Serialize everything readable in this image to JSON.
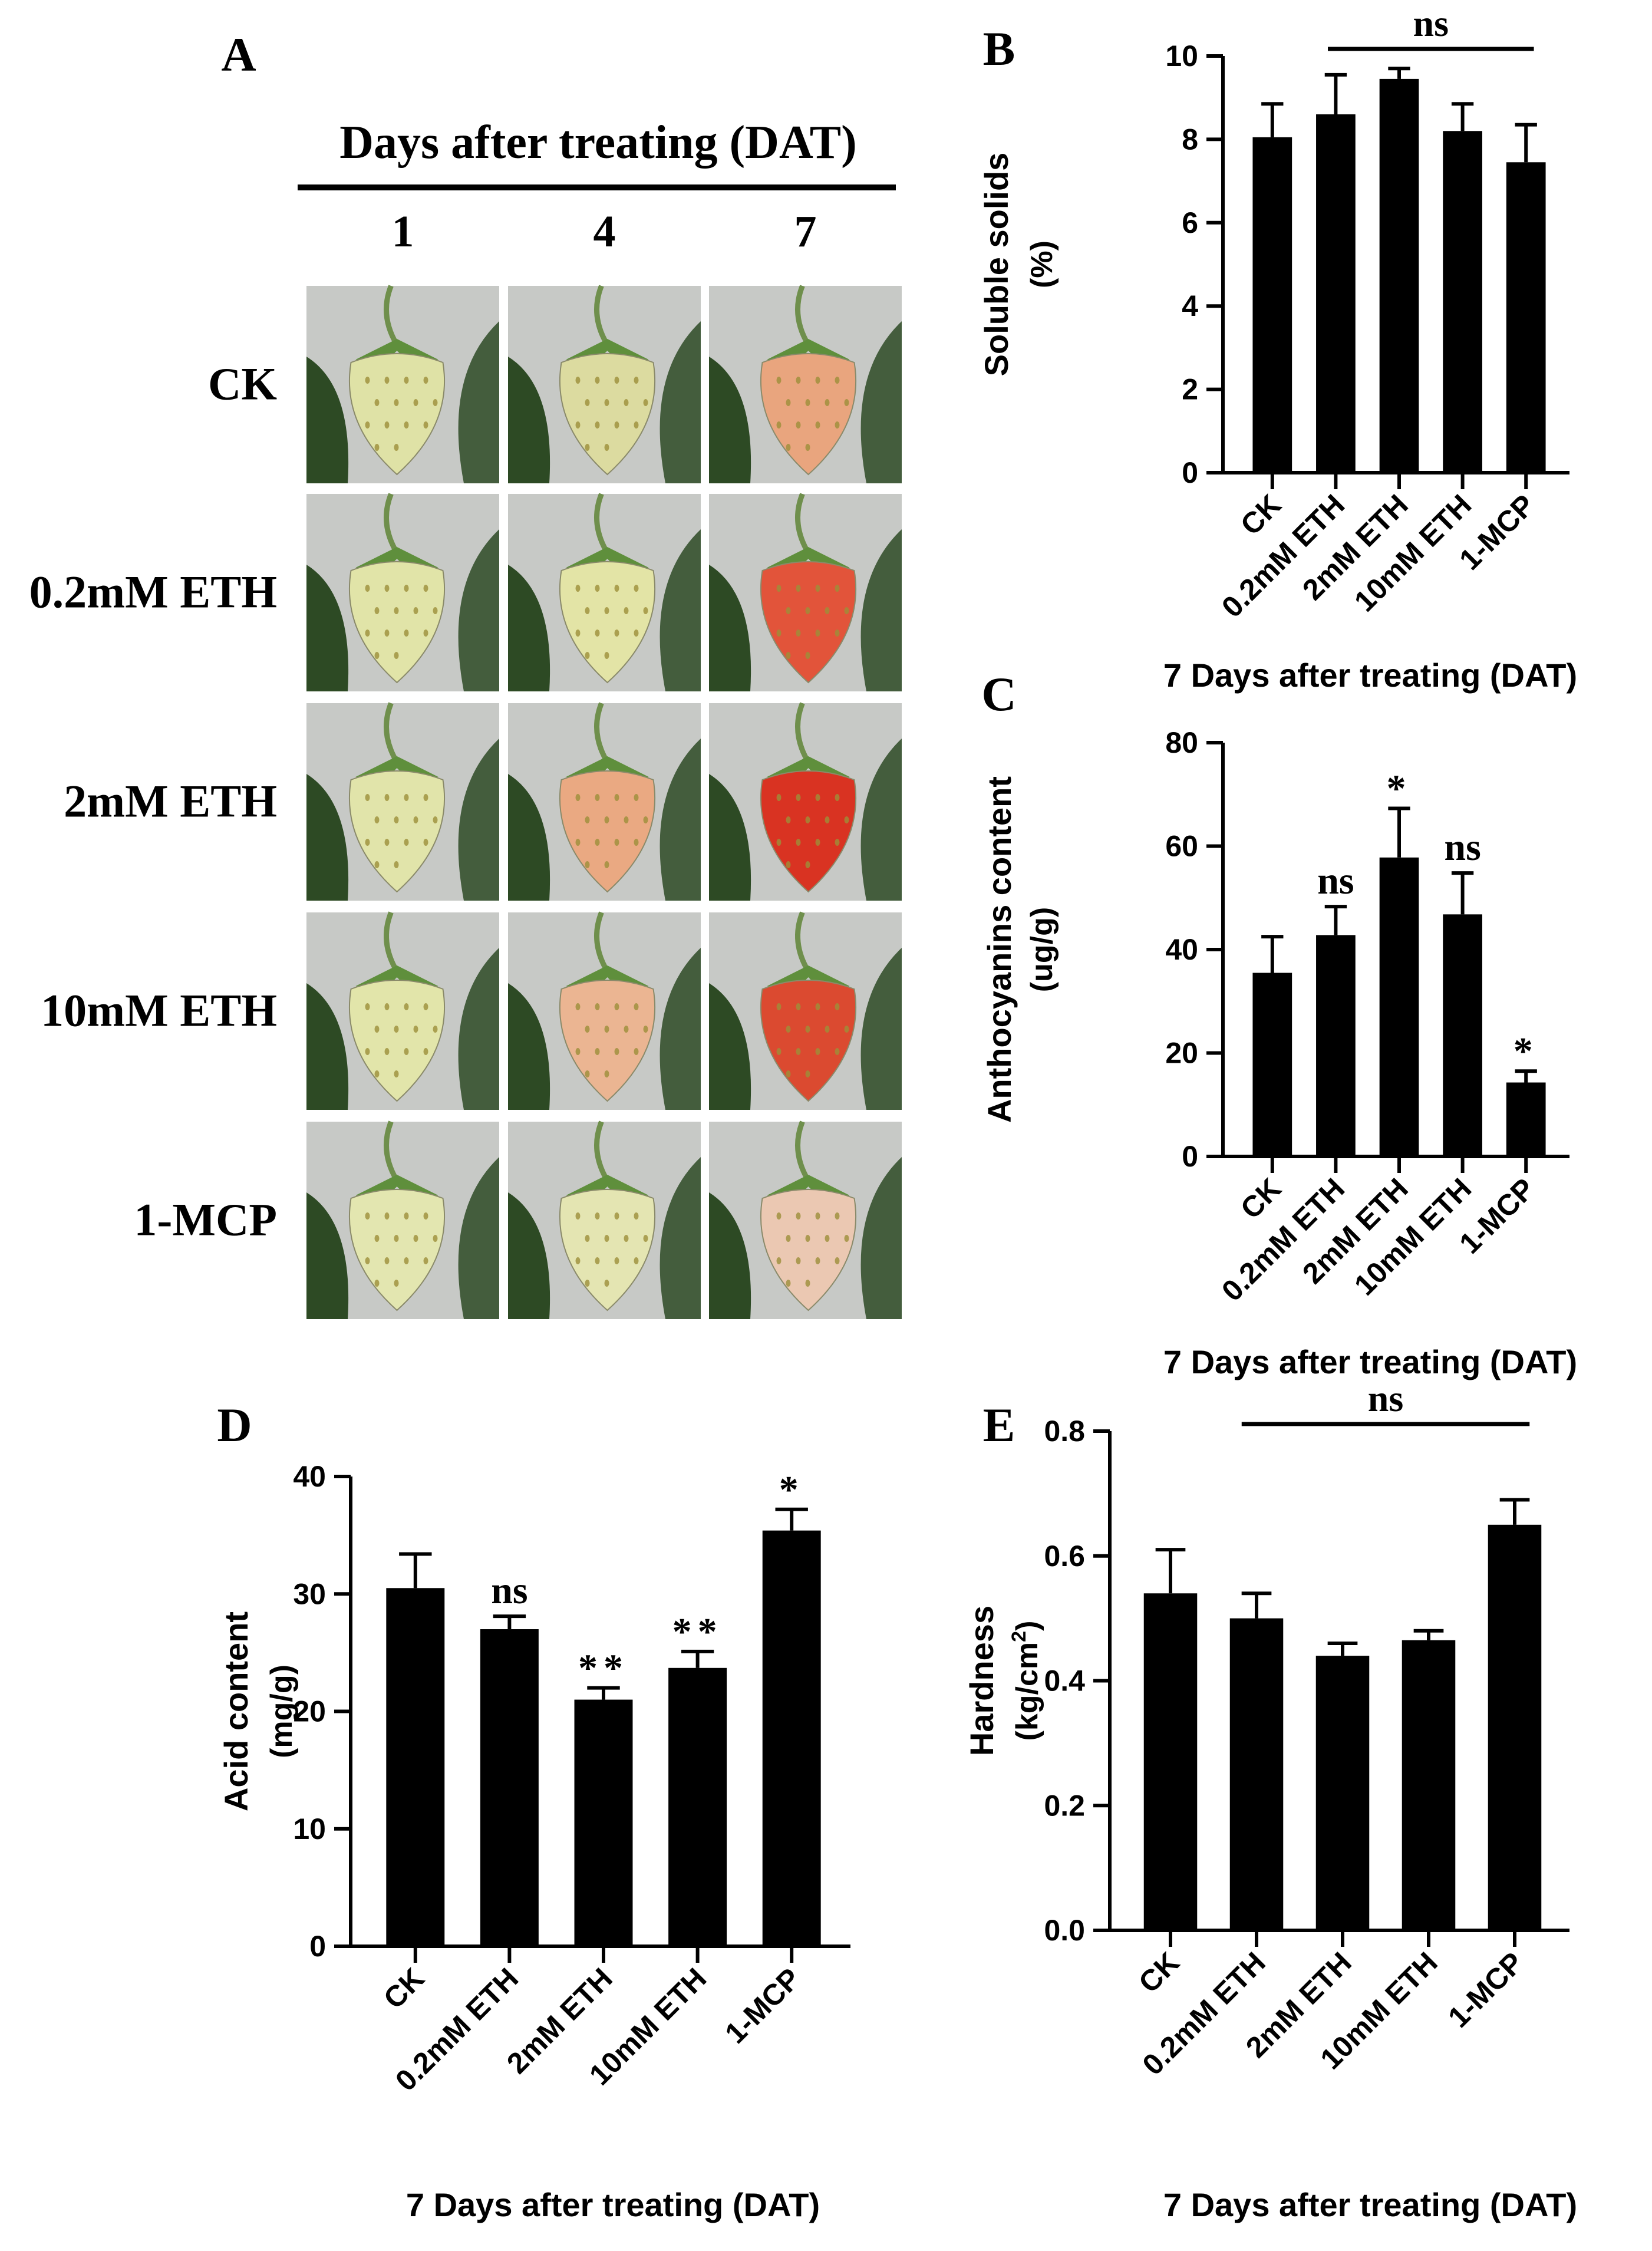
{
  "panelA": {
    "letter": "A",
    "header": "Days after treating  (DAT)",
    "days": [
      "1",
      "4",
      "7"
    ],
    "rows": [
      "CK",
      "0.2mM ETH",
      "2mM ETH",
      "10mM ETH",
      "1-MCP"
    ],
    "colors": {
      "leaf": "#2d4a24",
      "stem": "#6f8f4c",
      "background": "#c7c9c6",
      "calyx": "#5f8f3c"
    },
    "fruit_colors": [
      [
        "#dfe2a6",
        "#dcdba0",
        "#e9a57e"
      ],
      [
        "#e1e4a8",
        "#e3e4a6",
        "#e2543a"
      ],
      [
        "#e1e4aa",
        "#eaa982",
        "#d93322"
      ],
      [
        "#e2e5aa",
        "#ebb592",
        "#db4a30"
      ],
      [
        "#e3e6b0",
        "#e4e5b2",
        "#ebc8b2"
      ]
    ]
  },
  "chart_data": [
    {
      "panel": "B",
      "type": "bar",
      "categories": [
        "CK",
        "0.2mM ETH",
        "2mM ETH",
        "10mM ETH",
        "1-MCP"
      ],
      "values": [
        8.05,
        8.6,
        9.45,
        8.2,
        7.45
      ],
      "errors": [
        0.8,
        0.95,
        0.25,
        0.65,
        0.9
      ],
      "ylabel_line1": "Soluble solids",
      "ylabel_line2": "(%)",
      "xlabel": "7 Days after treating (DAT)",
      "yticks": [
        "0",
        "2",
        "4",
        "6",
        "8",
        "10"
      ],
      "ylim": [
        0,
        10
      ],
      "annotation": {
        "label": "ns",
        "type": "bracket",
        "from": 1,
        "to": 4
      },
      "significance": []
    },
    {
      "panel": "C",
      "type": "bar",
      "categories": [
        "CK",
        "0.2mM ETH",
        "2mM ETH",
        "10mM ETH",
        "1-MCP"
      ],
      "values": [
        35.5,
        42.8,
        57.8,
        46.8,
        14.3
      ],
      "errors": [
        7.0,
        5.5,
        9.5,
        8.0,
        2.2
      ],
      "ylabel_line1": "Anthocyanins content",
      "ylabel_line2": "(ug/g)",
      "xlabel": "7 Days after treating (DAT)",
      "yticks": [
        "0",
        "20",
        "40",
        "60",
        "80"
      ],
      "ylim": [
        0,
        80
      ],
      "annotation": null,
      "significance": [
        "",
        "ns",
        "*",
        "ns",
        "*"
      ]
    },
    {
      "panel": "D",
      "type": "bar",
      "categories": [
        "CK",
        "0.2mM ETH",
        "2mM ETH",
        "10mM ETH",
        "1-MCP"
      ],
      "values": [
        30.5,
        27.0,
        21.0,
        23.7,
        35.4
      ],
      "errors": [
        2.9,
        1.1,
        1.0,
        1.4,
        1.8
      ],
      "ylabel_line1": "Acid content",
      "ylabel_line2": "(mg/g)",
      "xlabel": "7 Days after treating (DAT)",
      "yticks": [
        "0",
        "10",
        "20",
        "30",
        "40"
      ],
      "ylim": [
        0,
        40
      ],
      "annotation": null,
      "significance": [
        "",
        "ns",
        "**",
        "**",
        "*"
      ]
    },
    {
      "panel": "E",
      "type": "bar",
      "categories": [
        "CK",
        "0.2mM ETH",
        "2mM ETH",
        "10mM ETH",
        "1-MCP"
      ],
      "values": [
        0.54,
        0.5,
        0.44,
        0.465,
        0.65
      ],
      "errors": [
        0.07,
        0.04,
        0.02,
        0.015,
        0.04
      ],
      "ylabel_line1": "Hardness",
      "ylabel_line2": "(kg/cm",
      "ylabel_sup": "2",
      "ylabel_close": ")",
      "xlabel": "7 Days after treating (DAT)",
      "yticks": [
        "0.0",
        "0.2",
        "0.4",
        "0.6",
        "0.8"
      ],
      "ylim": [
        0,
        0.8
      ],
      "annotation": {
        "label": "ns",
        "type": "bracket",
        "from": 1,
        "to": 4
      },
      "significance": []
    }
  ]
}
